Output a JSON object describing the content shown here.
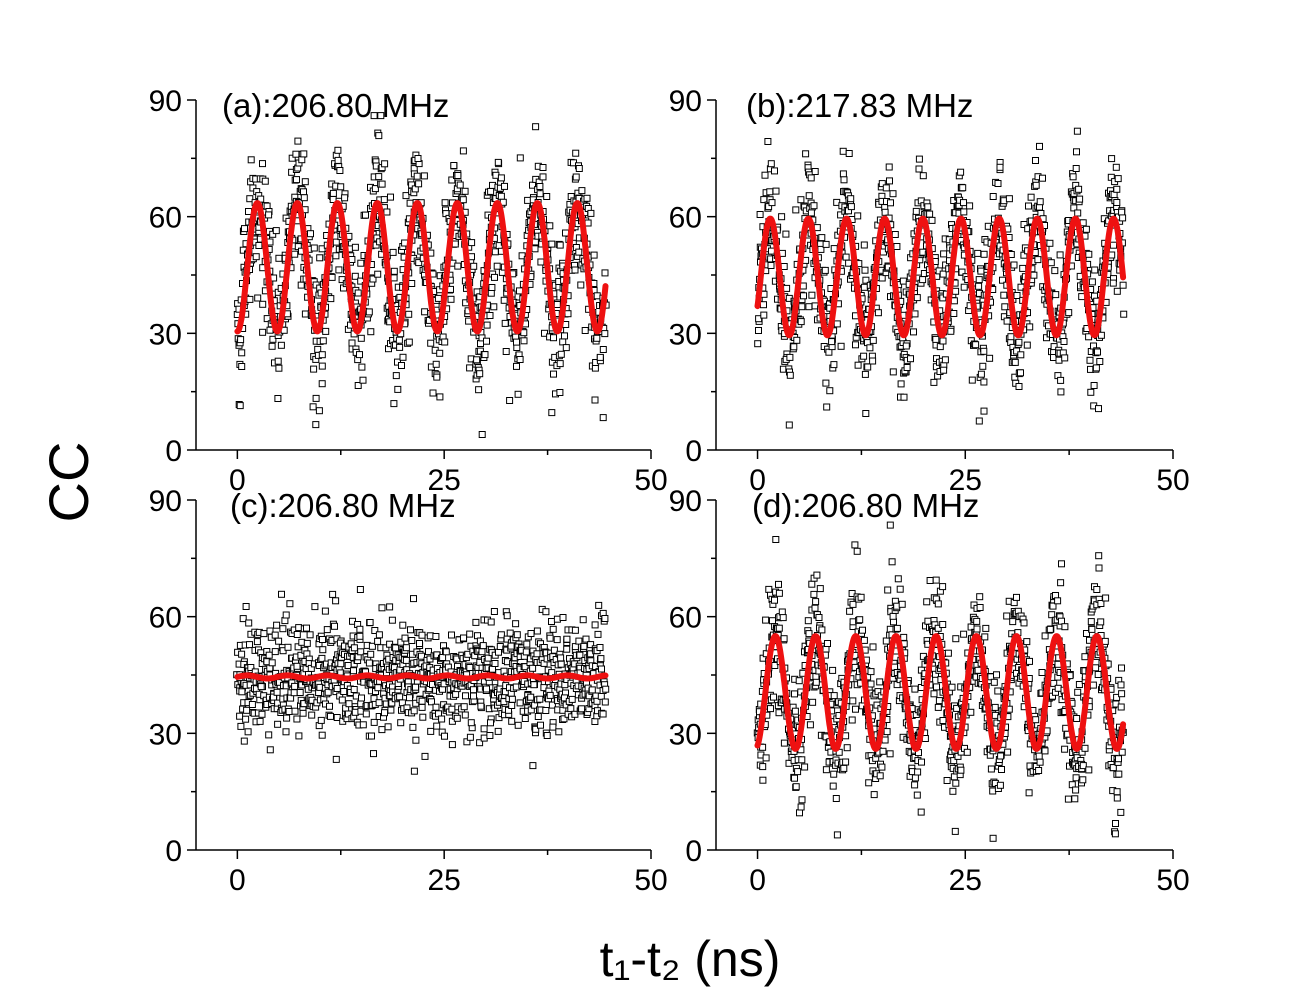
{
  "figure": {
    "xlabel": "t₁-t₂ (ns)",
    "ylabel": "CC"
  },
  "colors": {
    "fit_line": "#ee1111",
    "markers": "#000000",
    "background": "#ffffff"
  },
  "chart_data": [
    {
      "type": "scatter",
      "title": "(a):206.80 MHz",
      "xlim": [
        -5,
        50
      ],
      "ylim": [
        0,
        90
      ],
      "xticks": [
        0,
        25,
        50
      ],
      "yticks": [
        0,
        30,
        60,
        90
      ],
      "x_tick_labels": [
        "0",
        "25",
        "50"
      ],
      "y_tick_labels": [
        "0",
        "30",
        "60",
        "90"
      ],
      "x_range": [
        0,
        44.5
      ],
      "fit": {
        "type": "sinusoid",
        "freq_MHz": 206.8,
        "mean": 47,
        "amplitude": 16.5,
        "phase_deg": -90
      },
      "noise_sd": 9,
      "n_points": 1100
    },
    {
      "type": "scatter",
      "title": "(b):217.83 MHz",
      "xlim": [
        -5,
        50
      ],
      "ylim": [
        0,
        90
      ],
      "xticks": [
        0,
        25,
        50
      ],
      "yticks": [
        0,
        30,
        60,
        90
      ],
      "x_tick_labels": [
        "0",
        "25",
        "50"
      ],
      "y_tick_labels": [
        "0",
        "30",
        "60",
        "90"
      ],
      "x_range": [
        0,
        44
      ],
      "fit": {
        "type": "sinusoid",
        "freq_MHz": 217.83,
        "mean": 44.5,
        "amplitude": 15,
        "phase_deg": -30
      },
      "noise_sd": 9,
      "n_points": 1100
    },
    {
      "type": "scatter",
      "title": "(c):206.80 MHz",
      "xlim": [
        -5,
        50
      ],
      "ylim": [
        0,
        90
      ],
      "xticks": [
        0,
        25,
        50
      ],
      "yticks": [
        0,
        30,
        60,
        90
      ],
      "x_tick_labels": [
        "0",
        "25",
        "50"
      ],
      "y_tick_labels": [
        "0",
        "30",
        "60",
        "90"
      ],
      "x_range": [
        0,
        44.5
      ],
      "fit": {
        "type": "sinusoid",
        "freq_MHz": 206.8,
        "mean": 44.5,
        "amplitude": 0.4,
        "phase_deg": 0
      },
      "noise_sd": 7,
      "n_points": 1100
    },
    {
      "type": "scatter",
      "title": "(d):206.80 MHz",
      "xlim": [
        -5,
        50
      ],
      "ylim": [
        0,
        90
      ],
      "xticks": [
        0,
        25,
        50
      ],
      "yticks": [
        0,
        30,
        60,
        90
      ],
      "x_tick_labels": [
        "0",
        "25",
        "50"
      ],
      "y_tick_labels": [
        "0",
        "30",
        "60",
        "90"
      ],
      "x_range": [
        0,
        44
      ],
      "fit": {
        "type": "sinusoid",
        "freq_MHz": 206.8,
        "mean": 40.5,
        "amplitude": 14.5,
        "phase_deg": -70
      },
      "noise_sd": 8.5,
      "n_points": 1100
    }
  ]
}
